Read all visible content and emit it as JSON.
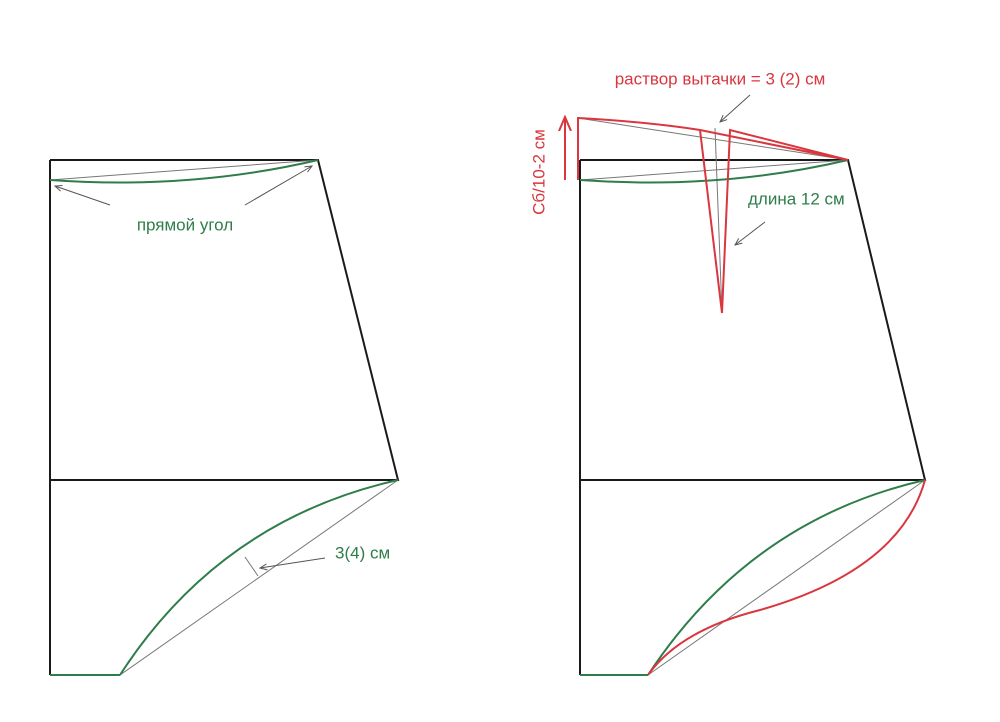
{
  "labels": {
    "right_angle": "прямой угол",
    "curve_depth": "3(4) см",
    "dart_opening": "раствор вытачки = 3 (2) см",
    "dart_length": "длина 12 см",
    "side_raise": "Сб/10-2 см"
  }
}
